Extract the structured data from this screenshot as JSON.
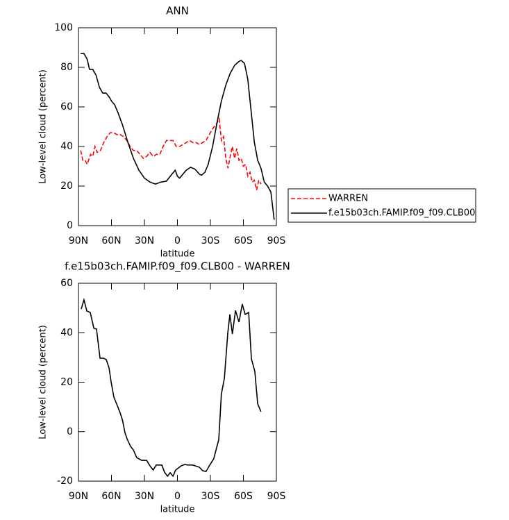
{
  "chart_data": [
    {
      "type": "line",
      "title": "ANN",
      "xlabel": "latitude",
      "ylabel": "Low-level cloud (percent)",
      "xlim": [
        90,
        -90
      ],
      "xticks": [
        {
          "value": 90,
          "label": "90N"
        },
        {
          "value": 60,
          "label": "60N"
        },
        {
          "value": 30,
          "label": "30N"
        },
        0,
        {
          "value": -30,
          "label": "30S"
        },
        {
          "value": -60,
          "label": "60S"
        },
        {
          "value": -90,
          "label": "90S"
        }
      ],
      "ylim": [
        0,
        100
      ],
      "yticks": [
        0,
        20,
        40,
        60,
        80,
        100
      ],
      "legend": "right",
      "series": [
        {
          "name": "WARREN",
          "color": "#ff0000",
          "line_style": "dashed",
          "x": [
            88,
            86,
            84,
            82,
            79,
            77,
            75,
            73,
            70,
            67,
            64,
            61,
            58,
            55,
            52,
            49,
            46,
            43,
            40,
            37,
            34,
            31,
            28,
            25,
            22,
            19,
            16,
            13,
            10,
            7,
            4,
            1,
            -2,
            -5,
            -8,
            -11,
            -14,
            -17,
            -20,
            -23,
            -26,
            -29,
            -32,
            -35,
            -38,
            -40,
            -42,
            -44,
            -46,
            -48,
            -50,
            -52,
            -54,
            -56,
            -58,
            -60,
            -62,
            -64,
            -66,
            -68,
            -70,
            -72,
            -74,
            -76
          ],
          "values": [
            38,
            33,
            33,
            31,
            36,
            35,
            40,
            37,
            38,
            42,
            45,
            47,
            47,
            46,
            46,
            45,
            43,
            40,
            38,
            38,
            36,
            34,
            35,
            37,
            35,
            36,
            36,
            40,
            43,
            43,
            43,
            40,
            40,
            41,
            42,
            43,
            42,
            42,
            41,
            42,
            43,
            46,
            49,
            51,
            54,
            43,
            45,
            34,
            29,
            35,
            40,
            34,
            39,
            33,
            34,
            30,
            31,
            25,
            27,
            22,
            23,
            18,
            23,
            21
          ]
        },
        {
          "name": "f.e15b03ch.FAMIP.f09_f09.CLB00",
          "color": "#000000",
          "line_style": "solid",
          "x": [
            88,
            85,
            82,
            80,
            77,
            74,
            71,
            68,
            65,
            62,
            60,
            57,
            54,
            50,
            45,
            40,
            35,
            30,
            25,
            20,
            15,
            10,
            5,
            2,
            0,
            -2,
            -5,
            -8,
            -12,
            -16,
            -20,
            -22,
            -25,
            -28,
            -32,
            -36,
            -40,
            -44,
            -48,
            -52,
            -56,
            -58,
            -61,
            -64,
            -67,
            -70,
            -73,
            -76,
            -79,
            -82,
            -85,
            -88
          ],
          "values": [
            87,
            87,
            84,
            79,
            79,
            76,
            70,
            67,
            67,
            65,
            63,
            61,
            57,
            51,
            42,
            34,
            28,
            24,
            22,
            21,
            22,
            22.5,
            26,
            28,
            25,
            24,
            26,
            28,
            29.5,
            28.5,
            26,
            25.5,
            27,
            31,
            40,
            52,
            63,
            71,
            77,
            81,
            83,
            83.5,
            82,
            74,
            58,
            42,
            33,
            29,
            22,
            20,
            17,
            3
          ]
        }
      ]
    },
    {
      "type": "line",
      "title": "f.e15b03ch.FAMIP.f09_f09.CLB00 - WARREN",
      "xlabel": "latitude",
      "ylabel": "Low-level cloud (percent)",
      "xlim": [
        90,
        -90
      ],
      "xticks": [
        {
          "value": 90,
          "label": "90N"
        },
        {
          "value": 60,
          "label": "60N"
        },
        {
          "value": 30,
          "label": "30N"
        },
        0,
        {
          "value": -30,
          "label": "30S"
        },
        {
          "value": -60,
          "label": "60S"
        },
        {
          "value": -90,
          "label": "90S"
        }
      ],
      "ylim": [
        -20,
        60
      ],
      "yticks": [
        -20,
        0,
        20,
        40,
        60
      ],
      "series": [
        {
          "color": "#000000",
          "line_style": "solid",
          "x": [
            87.5,
            85,
            82.4,
            79.3,
            76,
            73.6,
            70.4,
            67.3,
            64.7,
            62.2,
            60.3,
            57.8,
            55,
            52,
            50,
            47.7,
            45.8,
            42.6,
            40,
            37,
            32.5,
            28,
            25,
            22,
            19.3,
            14.2,
            11.7,
            9,
            6.6,
            4,
            1.6,
            -3.5,
            -6.6,
            -9.8,
            -14,
            -20,
            -23,
            -26,
            -29,
            -33,
            -37.6,
            -40,
            -42.7,
            -45.8,
            -47.7,
            -50,
            -52.8,
            -56,
            -59,
            -61.6,
            -64.8,
            -67.3,
            -70.4,
            -73,
            -76
          ],
          "values": [
            49.6,
            53.3,
            48.8,
            48.2,
            41.8,
            41.5,
            29.7,
            29.7,
            29.1,
            25.8,
            20.1,
            14,
            10.9,
            7.5,
            4.7,
            -0.4,
            -2.9,
            -6,
            -7.4,
            -10.5,
            -11.6,
            -11.6,
            -13.8,
            -15.5,
            -13.5,
            -13.5,
            -16.4,
            -18,
            -16.6,
            -18,
            -15.5,
            -13.8,
            -13.3,
            -13.5,
            -13.5,
            -14.4,
            -15.8,
            -16.1,
            -13.8,
            -11,
            -3.2,
            15.3,
            21.5,
            39.8,
            47.4,
            39.5,
            49,
            44.3,
            51.6,
            47.4,
            48.2,
            29.4,
            24.4,
            11.2,
            8.1
          ]
        }
      ]
    }
  ]
}
